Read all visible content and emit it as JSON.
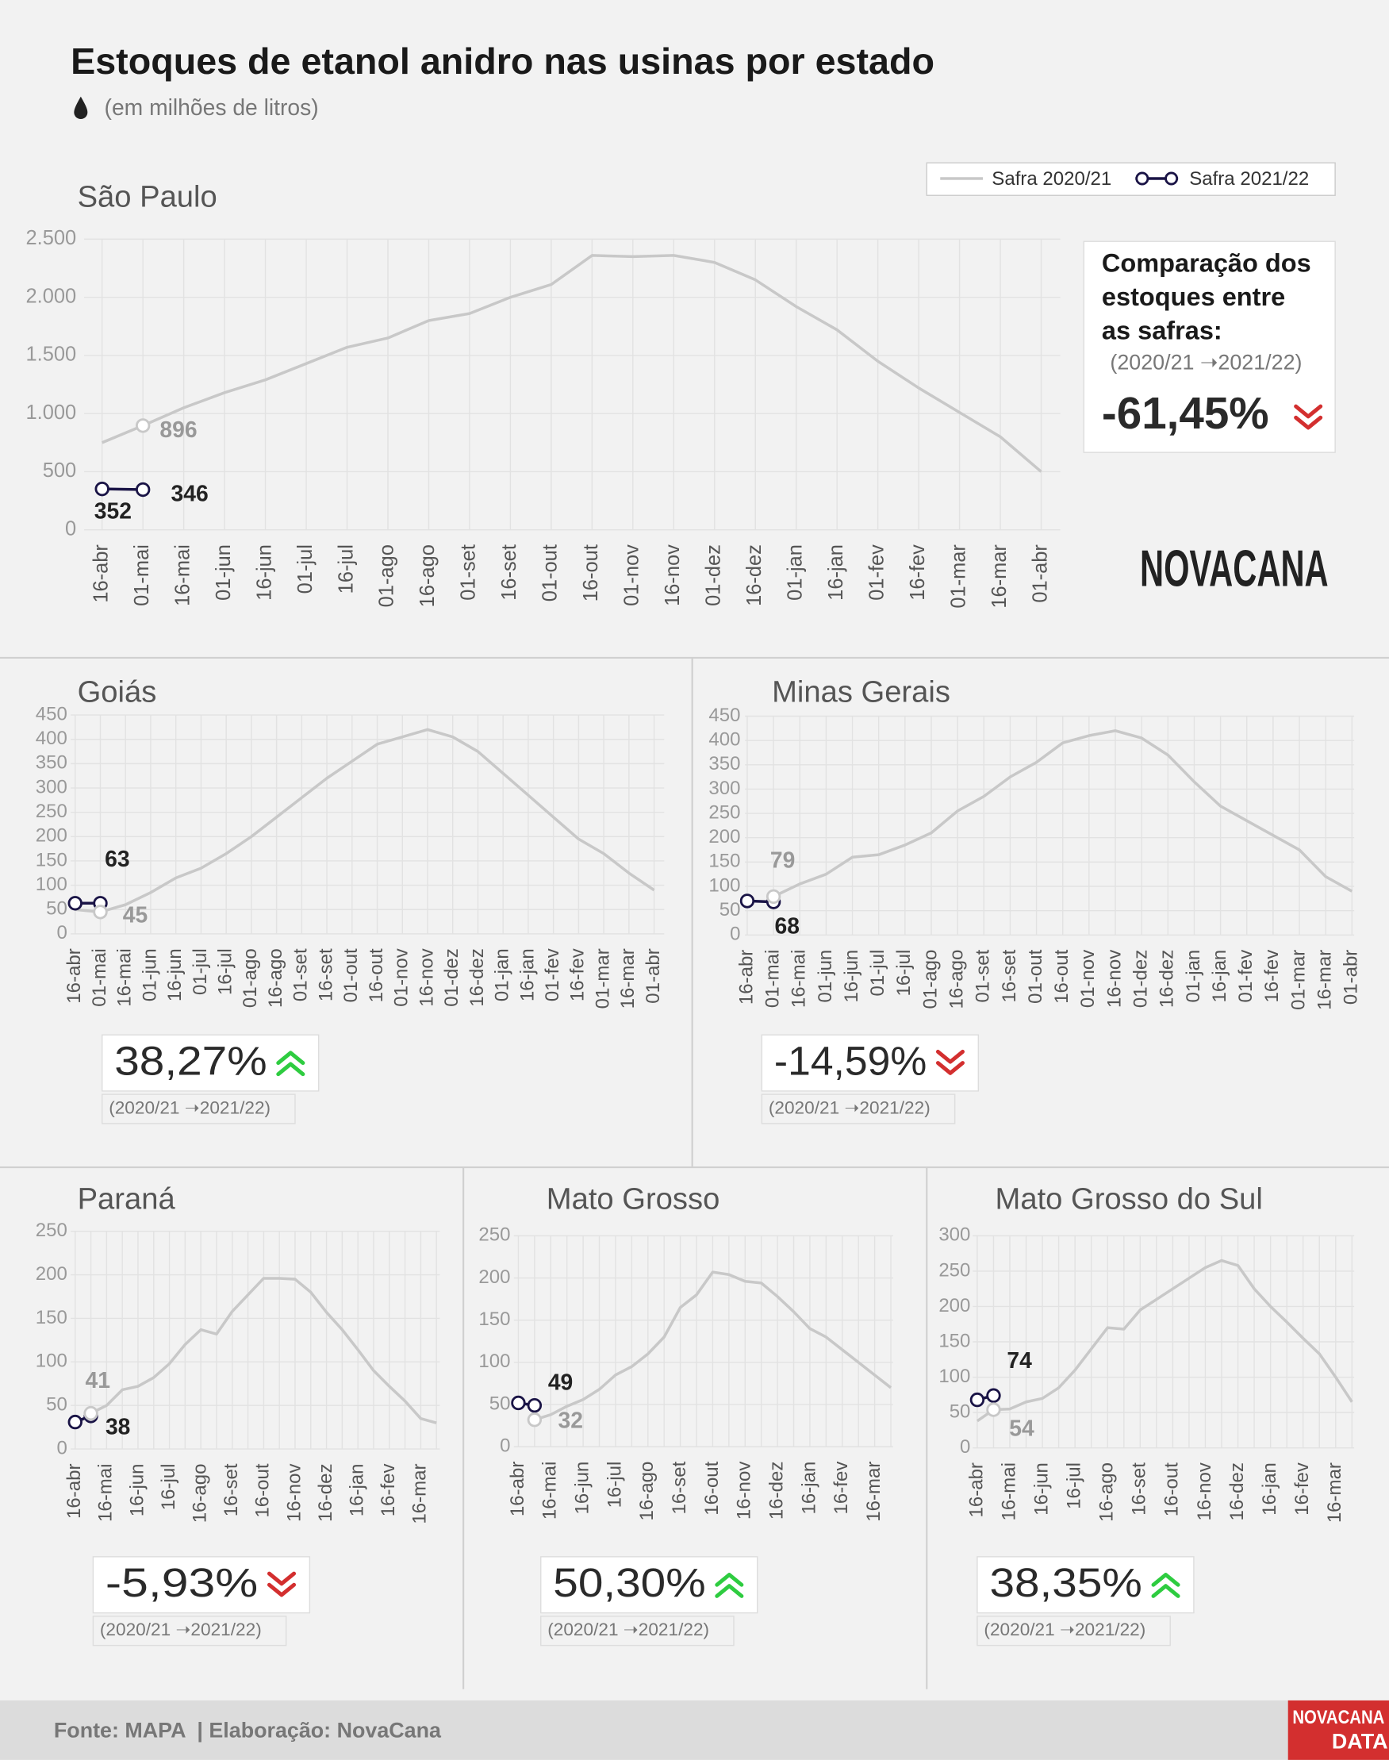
{
  "title": "Estoques de etanol anidro nas usinas por estado",
  "subtitle": "(em milhões de litros)",
  "comparison_heading": [
    "Comparação dos",
    "estoques entre",
    "as safras:"
  ],
  "logo": "NOVACANA",
  "footer_logo": [
    "NOVACANA",
    "DATA"
  ],
  "footer": "Fonte: MAPA  | Elaboração: NovaCana",
  "chart_data": [
    {
      "type": "line",
      "title": "São Paulo",
      "grid": true,
      "categories": [
        "16-abr",
        "01-mai",
        "16-mai",
        "01-jun",
        "16-jun",
        "01-jul",
        "16-jul",
        "01-ago",
        "16-ago",
        "01-set",
        "16-set",
        "01-out",
        "16-out",
        "01-nov",
        "16-nov",
        "01-dez",
        "16-dez",
        "01-jan",
        "16-jan",
        "01-fev",
        "16-fev",
        "01-mar",
        "16-mar",
        "01-abr"
      ],
      "series": [
        {
          "name": "Safra 2020/21",
          "color": "#c8c8c8",
          "values": [
            750,
            896,
            1050,
            1180,
            1290,
            1430,
            1570,
            1650,
            1800,
            1860,
            2000,
            2110,
            2360,
            2350,
            2360,
            2300,
            2150,
            1920,
            1720,
            1450,
            1220,
            1010,
            800,
            500
          ]
        },
        {
          "name": "Safra 2021/22",
          "color": "#1a1446",
          "values": [
            352,
            346,
            null,
            null,
            null,
            null,
            null,
            null,
            null,
            null,
            null,
            null,
            null,
            null,
            null,
            null,
            null,
            null,
            null,
            null,
            null,
            null,
            null,
            null
          ]
        }
      ],
      "ylim": [
        0,
        2500
      ],
      "yticks": [
        0,
        500,
        {
          "value": 1000,
          "label": "1.000"
        },
        {
          "value": 1500,
          "label": "1.500"
        },
        {
          "value": 2000,
          "label": "2.000"
        },
        {
          "value": 2500,
          "label": "2.500"
        }
      ],
      "comparison": {
        "value": "-61,45%",
        "period": "(2020/21 ➝2021/22)",
        "trend": "down"
      }
    },
    {
      "type": "line",
      "title": "Goiás",
      "grid": true,
      "categories": [
        "16-abr",
        "01-mai",
        "16-mai",
        "01-jun",
        "16-jun",
        "01-jul",
        "16-jul",
        "01-ago",
        "16-ago",
        "01-set",
        "16-set",
        "01-out",
        "16-out",
        "01-nov",
        "16-nov",
        "01-dez",
        "16-dez",
        "01-jan",
        "16-jan",
        "01-fev",
        "16-fev",
        "01-mar",
        "16-mar",
        "01-abr"
      ],
      "series": [
        {
          "color": "#c8c8c8",
          "values": [
            50,
            45,
            60,
            85,
            115,
            135,
            165,
            200,
            240,
            280,
            320,
            355,
            390,
            405,
            420,
            405,
            375,
            330,
            285,
            240,
            195,
            165,
            125,
            90
          ]
        },
        {
          "color": "#1a1446",
          "values": [
            63,
            63,
            null,
            null,
            null,
            null,
            null,
            null,
            null,
            null,
            null,
            null,
            null,
            null,
            null,
            null,
            null,
            null,
            null,
            null,
            null,
            null,
            null,
            null
          ]
        }
      ],
      "ylim": [
        0,
        450
      ],
      "yticks": [
        0,
        50,
        100,
        150,
        200,
        250,
        300,
        350,
        400,
        450
      ],
      "comparison": {
        "value": "38,27%",
        "period": "(2020/21 ➝2021/22)",
        "trend": "up"
      }
    },
    {
      "type": "line",
      "title": "Minas Gerais",
      "grid": true,
      "categories": [
        "16-abr",
        "01-mai",
        "16-mai",
        "01-jun",
        "16-jun",
        "01-jul",
        "16-jul",
        "01-ago",
        "16-ago",
        "01-set",
        "16-set",
        "01-out",
        "16-out",
        "01-nov",
        "16-nov",
        "01-dez",
        "16-dez",
        "01-jan",
        "16-jan",
        "01-fev",
        "16-fev",
        "01-mar",
        "16-mar",
        "01-abr"
      ],
      "series": [
        {
          "color": "#c8c8c8",
          "values": [
            null,
            79,
            105,
            125,
            160,
            165,
            185,
            210,
            255,
            285,
            325,
            355,
            395,
            410,
            420,
            405,
            370,
            315,
            265,
            235,
            205,
            175,
            120,
            90
          ]
        },
        {
          "color": "#1a1446",
          "values": [
            70,
            68,
            null,
            null,
            null,
            null,
            null,
            null,
            null,
            null,
            null,
            null,
            null,
            null,
            null,
            null,
            null,
            null,
            null,
            null,
            null,
            null,
            null,
            null
          ]
        }
      ],
      "ylim": [
        0,
        450
      ],
      "yticks": [
        0,
        50,
        100,
        150,
        200,
        250,
        300,
        350,
        400,
        450
      ],
      "comparison": {
        "value": "-14,59%",
        "period": "(2020/21 ➝2021/22)",
        "trend": "down"
      }
    },
    {
      "type": "line",
      "title": "Paraná",
      "grid": true,
      "categories": [
        "16-abr",
        null,
        "16-mai",
        null,
        "16-jun",
        null,
        "16-jul",
        null,
        "16-ago",
        null,
        "16-set",
        null,
        "16-out",
        null,
        "16-nov",
        null,
        "16-dez",
        null,
        "16-jan",
        null,
        "16-fev",
        null,
        "16-mar",
        null
      ],
      "series": [
        {
          "color": "#c8c8c8",
          "values": [
            null,
            41,
            50,
            68,
            72,
            82,
            98,
            120,
            137,
            132,
            158,
            177,
            196,
            196,
            195,
            180,
            157,
            137,
            114,
            90,
            72,
            55,
            35,
            30
          ]
        },
        {
          "color": "#1a1446",
          "values": [
            31,
            38,
            null,
            null,
            null,
            null,
            null,
            null,
            null,
            null,
            null,
            null,
            null,
            null,
            null,
            null,
            null,
            null,
            null,
            null,
            null,
            null,
            null,
            null
          ]
        }
      ],
      "ylim": [
        0,
        250
      ],
      "yticks": [
        0,
        50,
        100,
        150,
        200,
        250
      ],
      "comparison": {
        "value": "-5,93%",
        "period": "(2020/21 ➝2021/22)",
        "trend": "down"
      }
    },
    {
      "type": "line",
      "title": "Mato Grosso",
      "grid": true,
      "categories": [
        "16-abr",
        null,
        "16-mai",
        null,
        "16-jun",
        null,
        "16-jul",
        null,
        "16-ago",
        null,
        "16-set",
        null,
        "16-out",
        null,
        "16-nov",
        null,
        "16-dez",
        null,
        "16-jan",
        null,
        "16-fev",
        null,
        "16-mar",
        null
      ],
      "series": [
        {
          "color": "#c8c8c8",
          "values": [
            null,
            32,
            38,
            48,
            56,
            68,
            85,
            95,
            110,
            130,
            165,
            180,
            207,
            204,
            196,
            194,
            178,
            160,
            140,
            130,
            115,
            100,
            85,
            70
          ]
        },
        {
          "color": "#1a1446",
          "values": [
            52,
            49,
            null,
            null,
            null,
            null,
            null,
            null,
            null,
            null,
            null,
            null,
            null,
            null,
            null,
            null,
            null,
            null,
            null,
            null,
            null,
            null,
            null,
            null
          ]
        }
      ],
      "ylim": [
        0,
        250
      ],
      "yticks": [
        0,
        50,
        100,
        150,
        200,
        250
      ],
      "comparison": {
        "value": "50,30%",
        "period": "(2020/21 ➝2021/22)",
        "trend": "up"
      }
    },
    {
      "type": "line",
      "title": "Mato Grosso do Sul",
      "grid": true,
      "categories": [
        "16-abr",
        null,
        "16-mai",
        null,
        "16-jun",
        null,
        "16-jul",
        null,
        "16-ago",
        null,
        "16-set",
        null,
        "16-out",
        null,
        "16-nov",
        null,
        "16-dez",
        null,
        "16-jan",
        null,
        "16-fev",
        null,
        "16-mar",
        null
      ],
      "series": [
        {
          "color": "#c8c8c8",
          "values": [
            38,
            54,
            55,
            65,
            70,
            85,
            110,
            140,
            170,
            168,
            195,
            210,
            225,
            240,
            255,
            265,
            258,
            225,
            200,
            178,
            155,
            133,
            100,
            65
          ]
        },
        {
          "color": "#1a1446",
          "values": [
            68,
            74,
            null,
            null,
            null,
            null,
            null,
            null,
            null,
            null,
            null,
            null,
            null,
            null,
            null,
            null,
            null,
            null,
            null,
            null,
            null,
            null,
            null,
            null
          ]
        }
      ],
      "ylim": [
        0,
        300
      ],
      "yticks": [
        0,
        50,
        100,
        150,
        200,
        250,
        300
      ],
      "comparison": {
        "value": "38,35%",
        "period": "(2020/21 ➝2021/22)",
        "trend": "up"
      }
    }
  ]
}
